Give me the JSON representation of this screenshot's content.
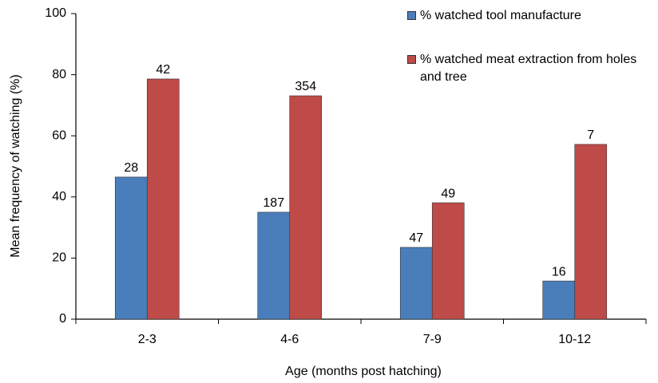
{
  "chart_data": {
    "type": "bar",
    "x_label": "Age (months post hatching)",
    "y_label": "Mean frequency of watching (%)",
    "categories": [
      "2-3",
      "4-6",
      "7-9",
      "10-12"
    ],
    "series": [
      {
        "name": "% watched tool manufacture",
        "color": "#4a7ebb",
        "values": [
          46.5,
          35,
          23.5,
          12.5
        ],
        "sample_sizes": [
          28,
          187,
          47,
          16
        ]
      },
      {
        "name": "% watched meat extraction from holes and tree",
        "color": "#be4b48",
        "values": [
          78.6,
          73.1,
          38.1,
          57.2
        ],
        "sample_sizes": [
          42,
          354,
          49,
          7
        ]
      }
    ],
    "ylim": [
      0,
      100
    ],
    "yticks": [
      0,
      20,
      40,
      60,
      80,
      100
    ],
    "grid": false,
    "legend": "top-right"
  }
}
